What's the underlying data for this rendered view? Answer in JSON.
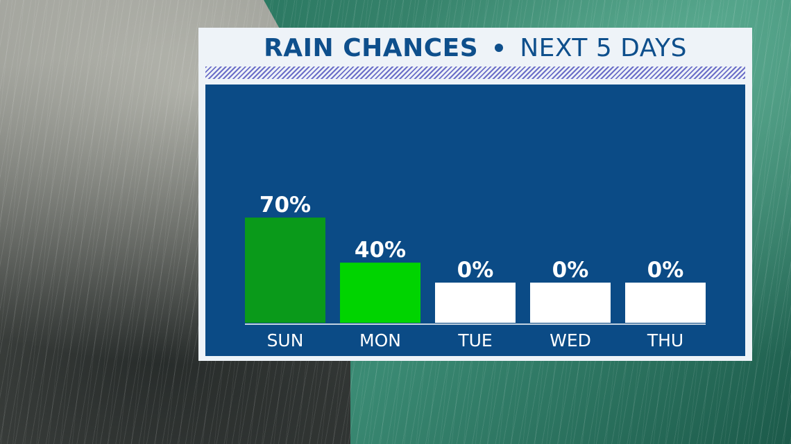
{
  "header": {
    "title_main": "RAIN CHANCES",
    "title_sub": "NEXT 5 DAYS"
  },
  "chart_data": {
    "type": "bar",
    "title": "RAIN CHANCES • NEXT 5 DAYS",
    "categories": [
      "SUN",
      "MON",
      "TUE",
      "WED",
      "THU"
    ],
    "values": [
      70,
      40,
      0,
      0,
      0
    ],
    "value_labels": [
      "70%",
      "40%",
      "0%",
      "0%",
      "0%"
    ],
    "unit": "%",
    "ylim": [
      0,
      100
    ],
    "grid": false,
    "bar_colors": [
      "#0a9a1a",
      "#00d400",
      "#ffffff",
      "#ffffff",
      "#ffffff"
    ]
  },
  "colors": {
    "panel_background": "#eef3f8",
    "plot_background": "#0b4b86",
    "title_color": "#0e4f8c",
    "hatch_color": "#5b5ec3"
  }
}
